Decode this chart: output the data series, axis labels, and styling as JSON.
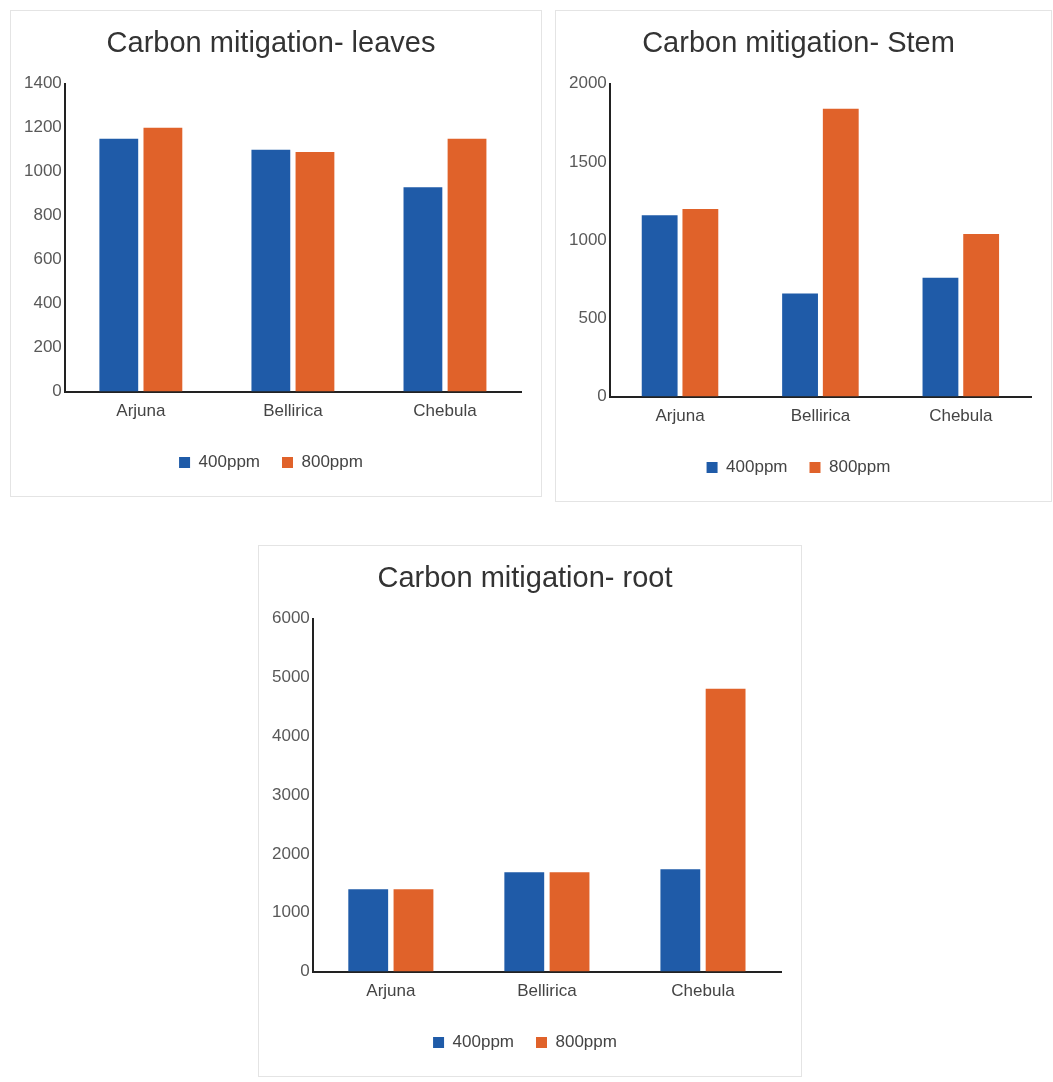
{
  "chart_data": [
    {
      "type": "bar",
      "title": "Carbon mitigation- leaves",
      "categories": [
        "Arjuna",
        "Bellirica",
        "Chebula"
      ],
      "series": [
        {
          "name": "400ppm",
          "color": "#1f5ba8",
          "values": [
            1150,
            1100,
            930
          ]
        },
        {
          "name": "800ppm",
          "color": "#e0622a",
          "values": [
            1200,
            1090,
            1150
          ]
        }
      ],
      "ylim": [
        0,
        1400
      ],
      "yticks": [
        0,
        200,
        400,
        600,
        800,
        1000,
        1200,
        1400
      ],
      "grid": false,
      "legend": "bottom"
    },
    {
      "type": "bar",
      "title": "Carbon mitigation- Stem",
      "categories": [
        "Arjuna",
        "Bellirica",
        "Chebula"
      ],
      "series": [
        {
          "name": "400ppm",
          "color": "#1f5ba8",
          "values": [
            1160,
            660,
            760
          ]
        },
        {
          "name": "800ppm",
          "color": "#e0622a",
          "values": [
            1200,
            1840,
            1040
          ]
        }
      ],
      "ylim": [
        0,
        2000
      ],
      "yticks": [
        0,
        500,
        1000,
        1500,
        2000
      ],
      "grid": false,
      "legend": "bottom"
    },
    {
      "type": "bar",
      "title": "Carbon mitigation- root",
      "categories": [
        "Arjuna",
        "Bellirica",
        "Chebula"
      ],
      "series": [
        {
          "name": "400ppm",
          "color": "#1f5ba8",
          "values": [
            1400,
            1690,
            1740
          ]
        },
        {
          "name": "800ppm",
          "color": "#e0622a",
          "values": [
            1400,
            1690,
            4810
          ]
        }
      ],
      "ylim": [
        0,
        6000
      ],
      "yticks": [
        0,
        1000,
        2000,
        3000,
        4000,
        5000,
        6000
      ],
      "grid": false,
      "legend": "bottom"
    }
  ]
}
